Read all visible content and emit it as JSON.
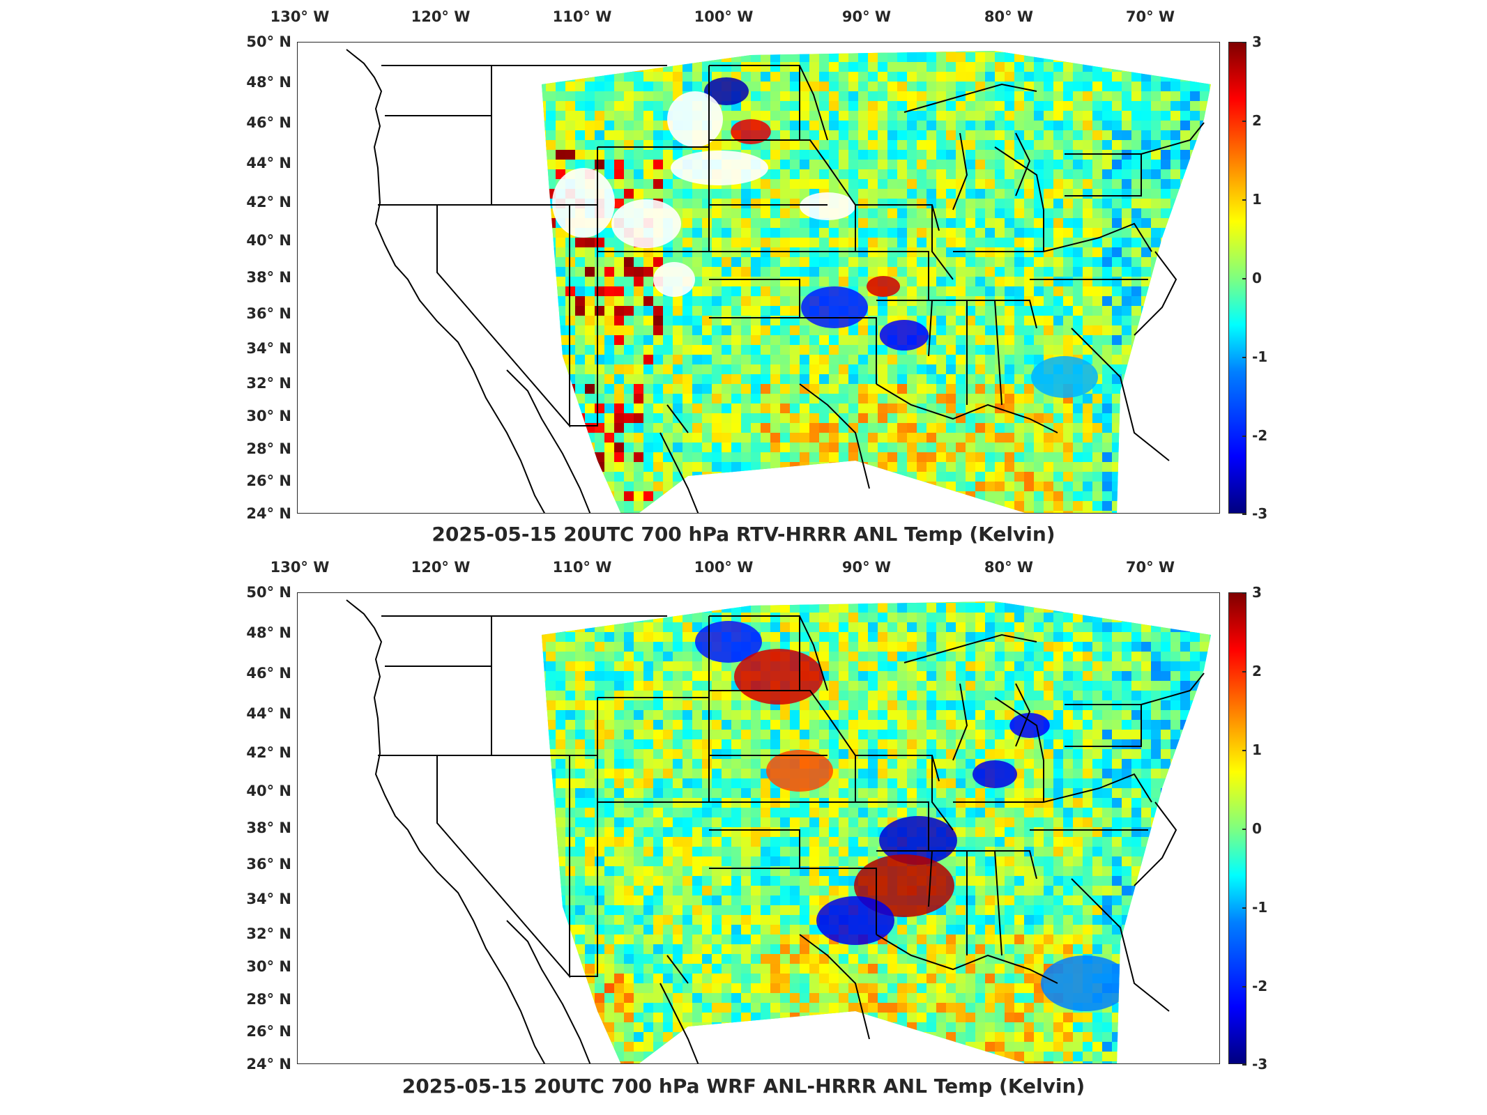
{
  "panels": [
    {
      "id": "top",
      "title": "2025-05-15 20UTC 700 hPa RTV-HRRR ANL Temp (Kelvin)",
      "lon_labels": [
        "130° W",
        "120° W",
        "110° W",
        "100° W",
        "90° W",
        "80° W",
        "70° W"
      ],
      "lat_labels": [
        "50° N",
        "48° N",
        "46° N",
        "44° N",
        "42° N",
        "40° N",
        "38° N",
        "36° N",
        "34° N",
        "32° N",
        "30° N",
        "28° N",
        "26° N",
        "24° N"
      ],
      "colorbar_ticks": [
        "3",
        "2",
        "1",
        "0",
        "-1",
        "-2",
        "-3"
      ]
    },
    {
      "id": "bottom",
      "title": "2025-05-15 20UTC 700 hPa WRF ANL-HRRR ANL Temp (Kelvin)",
      "lon_labels": [
        "130° W",
        "120° W",
        "110° W",
        "100° W",
        "90° W",
        "80° W",
        "70° W"
      ],
      "lat_labels": [
        "50° N",
        "48° N",
        "46° N",
        "44° N",
        "42° N",
        "40° N",
        "38° N",
        "36° N",
        "34° N",
        "32° N",
        "30° N",
        "28° N",
        "26° N",
        "24° N"
      ],
      "colorbar_ticks": [
        "3",
        "2",
        "1",
        "0",
        "-1",
        "-2",
        "-3"
      ]
    }
  ],
  "colormap": "jet",
  "colorbar_range": [
    -3,
    3
  ],
  "colors": {
    "frame": "#262626",
    "coast": "#000000"
  }
}
